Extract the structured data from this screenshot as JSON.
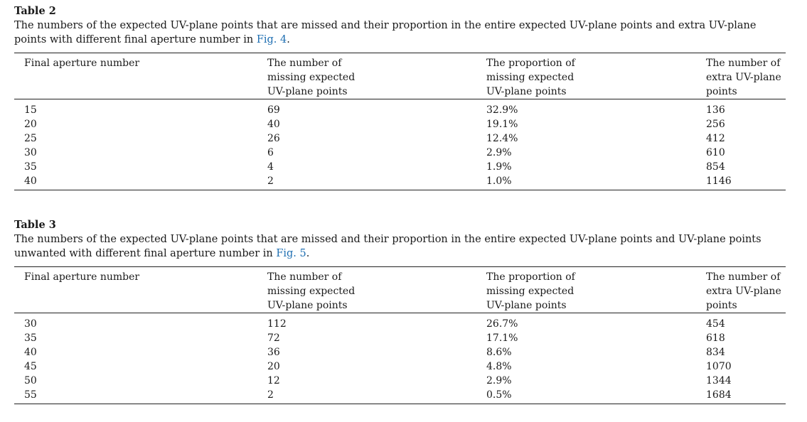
{
  "tables": [
    {
      "label": "Table 2",
      "caption_text": "The numbers of the expected UV-plane points that are missed and their proportion in the entire expected UV-plane points and extra UV-plane points with different final aperture number in ",
      "caption_ref": "Fig. 4",
      "caption_end": ".",
      "headers": [
        "Final aperture number",
        "The number of\nmissing expected\nUV-plane points",
        "The proportion of\nmissing expected\nUV-plane points",
        "The number of\nextra UV-plane\npoints"
      ],
      "rows": [
        [
          "15",
          "69",
          "32.9%",
          "136"
        ],
        [
          "20",
          "40",
          "19.1%",
          "256"
        ],
        [
          "25",
          "26",
          "12.4%",
          "412"
        ],
        [
          "30",
          "6",
          "2.9%",
          "610"
        ],
        [
          "35",
          "4",
          "1.9%",
          "854"
        ],
        [
          "40",
          "2",
          "1.0%",
          "1146"
        ]
      ]
    },
    {
      "label": "Table 3",
      "caption_text": "The numbers of the expected UV-plane points that are missed and their proportion in the entire expected UV-plane points and UV-plane points unwanted with different final aperture number in ",
      "caption_ref": "Fig. 5",
      "caption_end": ".",
      "headers": [
        "Final aperture number",
        "The number of\nmissing expected\nUV-plane points",
        "The proportion of\nmissing expected\nUV-plane points",
        "The number of\nextra UV-plane\npoints"
      ],
      "rows": [
        [
          "30",
          "112",
          "26.7%",
          "454"
        ],
        [
          "35",
          "72",
          "17.1%",
          "618"
        ],
        [
          "40",
          "36",
          "8.6%",
          "834"
        ],
        [
          "45",
          "20",
          "4.8%",
          "1070"
        ],
        [
          "50",
          "12",
          "2.9%",
          "1344"
        ],
        [
          "55",
          "2",
          "0.5%",
          "1684"
        ]
      ]
    }
  ]
}
